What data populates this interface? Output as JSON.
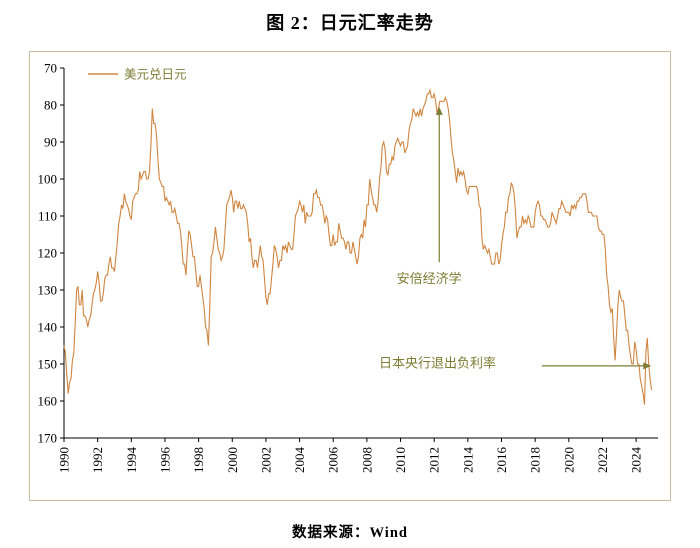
{
  "title": "图 2：日元汇率走势",
  "source": "数据来源：Wind",
  "colors": {
    "line": "#d08540",
    "annotation": "#7d7d35",
    "axis": "#000000",
    "tick_label": "#000000",
    "box_border": "#c9bda4"
  },
  "chart_data": {
    "type": "line",
    "title": "图 2：日元汇率走势",
    "legend": [
      "美元兑日元"
    ],
    "legend_position": "top-left",
    "grid": false,
    "y_axis_inverted": true,
    "ylim": [
      70,
      170
    ],
    "xlim": [
      1990,
      2025.3
    ],
    "y_ticks": [
      70,
      80,
      90,
      100,
      110,
      120,
      130,
      140,
      150,
      160,
      170
    ],
    "x_ticks": [
      1990,
      1992,
      1994,
      1996,
      1998,
      2000,
      2002,
      2004,
      2006,
      2008,
      2010,
      2012,
      2014,
      2016,
      2018,
      2020,
      2022,
      2024
    ],
    "x_start_year": 1990,
    "points_per_year": 12,
    "series": [
      {
        "name": "美元兑日元",
        "values": [
          145,
          147,
          153,
          158,
          155,
          154,
          149,
          147,
          139,
          130,
          129,
          134,
          134,
          130,
          137,
          137,
          138,
          140,
          138,
          137,
          134,
          131,
          130,
          128,
          125,
          128,
          133,
          133,
          131,
          127,
          126,
          126,
          123,
          121,
          124,
          124,
          125,
          121,
          117,
          112,
          110,
          107,
          108,
          104,
          106,
          107,
          108,
          110,
          111,
          106,
          105,
          104,
          104,
          103,
          98,
          100,
          99,
          98,
          98,
          100,
          100,
          98,
          91,
          81,
          85,
          85,
          88,
          95,
          100,
          101,
          102,
          102,
          106,
          105,
          106,
          107,
          106,
          109,
          109,
          108,
          110,
          112,
          112,
          114,
          118,
          123,
          123,
          126,
          119,
          114,
          115,
          118,
          121,
          121,
          125,
          129,
          129,
          126,
          129,
          132,
          135,
          140,
          141,
          145,
          134,
          121,
          120,
          117,
          113,
          116,
          119,
          120,
          122,
          121,
          119,
          113,
          107,
          106,
          105,
          103,
          105,
          109,
          106,
          106,
          108,
          106,
          108,
          108,
          107,
          108,
          109,
          112,
          117,
          116,
          121,
          124,
          122,
          122,
          124,
          121,
          118,
          121,
          122,
          127,
          132,
          134,
          131,
          131,
          127,
          123,
          118,
          119,
          121,
          124,
          122,
          122,
          118,
          119,
          118,
          120,
          117,
          118,
          119,
          119,
          115,
          110,
          109,
          108,
          106,
          107,
          109,
          107,
          112,
          109,
          110,
          110,
          110,
          109,
          104,
          104,
          103,
          105,
          105,
          107,
          107,
          109,
          112,
          110,
          111,
          115,
          118,
          118,
          115,
          118,
          117,
          117,
          112,
          114,
          116,
          116,
          117,
          119,
          117,
          117,
          120,
          120,
          117,
          119,
          121,
          123,
          121,
          116,
          115,
          116,
          111,
          113,
          107,
          107,
          100,
          103,
          105,
          107,
          107,
          109,
          106,
          100,
          97,
          91,
          90,
          92,
          98,
          99,
          96,
          96,
          94,
          95,
          91,
          90,
          89,
          90,
          91,
          90,
          90,
          93,
          92,
          91,
          87,
          85,
          84,
          81,
          82,
          83,
          82,
          83,
          81,
          83,
          81,
          80,
          79,
          77,
          77,
          76,
          78,
          78,
          77,
          79,
          82,
          81,
          79,
          79,
          79,
          79,
          78,
          79,
          81,
          84,
          89,
          93,
          95,
          98,
          101,
          97,
          99,
          98,
          99,
          98,
          100,
          103,
          104,
          102,
          102,
          102,
          102,
          102,
          102,
          103,
          107,
          108,
          116,
          119,
          118,
          119,
          120,
          119,
          121,
          123,
          123,
          123,
          120,
          120,
          123,
          122,
          118,
          115,
          113,
          109,
          109,
          105,
          104,
          101,
          102,
          104,
          109,
          116,
          114,
          113,
          113,
          110,
          112,
          111,
          112,
          110,
          111,
          113,
          113,
          113,
          109,
          107,
          106,
          107,
          110,
          110,
          111,
          111,
          112,
          113,
          113,
          112,
          109,
          110,
          111,
          112,
          110,
          108,
          108,
          106,
          107,
          108,
          109,
          109,
          109,
          110,
          107,
          108,
          107,
          108,
          106,
          106,
          105,
          105,
          104,
          104,
          104,
          106,
          109,
          109,
          109,
          110,
          110,
          110,
          110,
          113,
          114,
          114,
          115,
          115,
          119,
          126,
          129,
          134,
          136,
          135,
          143,
          149,
          142,
          134,
          130,
          132,
          133,
          133,
          137,
          141,
          141,
          145,
          148,
          150,
          150,
          144,
          146,
          150,
          150,
          154,
          156,
          158,
          161,
          147,
          143,
          150,
          154,
          157
        ]
      }
    ],
    "annotations": [
      {
        "text": "安倍经济学",
        "text_x": 2011.7,
        "text_y": 127,
        "arrow": {
          "type": "vertical",
          "x": 2012.3,
          "from_y": 122.5,
          "to_y": 80.5
        }
      },
      {
        "text": "日本央行退出负利率",
        "text_x": 2012.2,
        "text_y": 149.8,
        "arrow": {
          "type": "horizontal",
          "y": 150.5,
          "from_x": 2018.4,
          "to_x": 2024.9
        }
      }
    ]
  }
}
